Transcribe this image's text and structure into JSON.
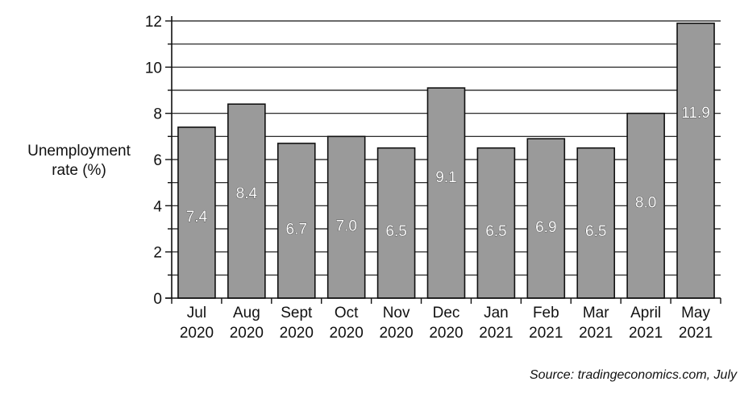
{
  "chart_data": {
    "type": "bar",
    "categories": [
      [
        "Jul",
        "2020"
      ],
      [
        "Aug",
        "2020"
      ],
      [
        "Sept",
        "2020"
      ],
      [
        "Oct",
        "2020"
      ],
      [
        "Nov",
        "2020"
      ],
      [
        "Dec",
        "2020"
      ],
      [
        "Jan",
        "2021"
      ],
      [
        "Feb",
        "2021"
      ],
      [
        "Mar",
        "2021"
      ],
      [
        "April",
        "2021"
      ],
      [
        "May",
        "2021"
      ]
    ],
    "values": [
      7.4,
      8.4,
      6.7,
      7.0,
      6.5,
      9.1,
      6.5,
      6.9,
      6.5,
      8.0,
      11.9
    ],
    "value_labels": [
      "7.4",
      "8.4",
      "6.7",
      "7.0",
      "6.5",
      "9.1",
      "6.5",
      "6.9",
      "6.5",
      "8.0",
      "11.9"
    ],
    "ylabel_lines": [
      "Unemployment",
      "rate (%)"
    ],
    "ylim": [
      0,
      12
    ],
    "yticks": [
      0,
      2,
      4,
      6,
      8,
      10,
      12
    ],
    "grid_step": 1,
    "grid": true,
    "bar_color": "#9a9a9a",
    "source": "Source: tradingeconomics.com, July"
  }
}
